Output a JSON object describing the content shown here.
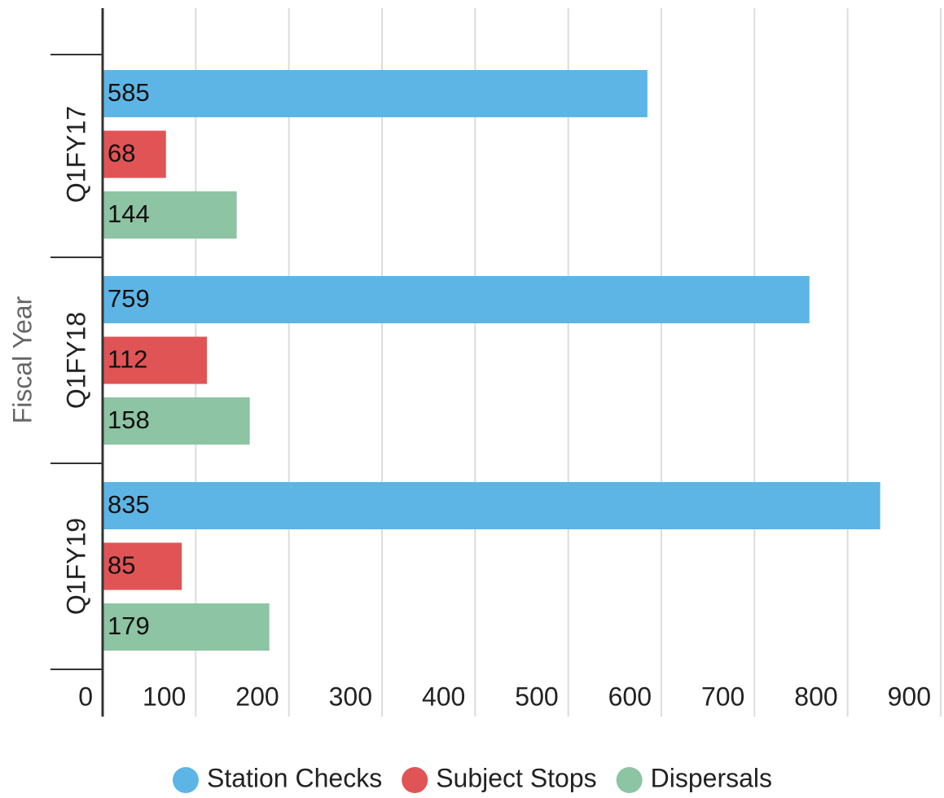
{
  "chart_data": {
    "type": "bar",
    "orientation": "horizontal",
    "y_label": "Fiscal Year",
    "categories": [
      "Q1FY17",
      "Q1FY18",
      "Q1FY19"
    ],
    "series": [
      {
        "name": "Station Checks",
        "color": "#5db5e5",
        "values": [
          585,
          759,
          835
        ]
      },
      {
        "name": "Subject Stops",
        "color": "#e05455",
        "values": [
          68,
          112,
          85
        ]
      },
      {
        "name": "Dispersals",
        "color": "#8dc4a3",
        "values": [
          144,
          158,
          179
        ]
      }
    ],
    "xlim": [
      0,
      900
    ],
    "xticks": [
      0,
      100,
      200,
      300,
      400,
      500,
      600,
      700,
      800,
      900
    ],
    "grid": true,
    "legend": "bottom"
  }
}
